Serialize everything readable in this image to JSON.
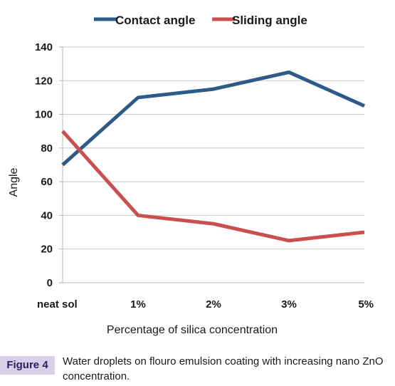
{
  "chart_data": {
    "type": "line",
    "categories": [
      "neat sol",
      "1%",
      "2%",
      "3%",
      "5%"
    ],
    "series": [
      {
        "name": "Contact angle",
        "color": "#2e5a8a",
        "values": [
          70,
          110,
          115,
          125,
          105
        ]
      },
      {
        "name": "Sliding angle",
        "color": "#c9504e",
        "values": [
          90,
          40,
          35,
          25,
          30
        ]
      }
    ],
    "xlabel": "Percentage of silica concentration",
    "ylabel": "Angle",
    "ylim": [
      0,
      140
    ],
    "yticks": [
      "0",
      "20",
      "40",
      "60",
      "80",
      "100",
      "120",
      "140"
    ],
    "grid": "horizontal",
    "legend_position": "top"
  },
  "caption": {
    "label": "Figure 4",
    "text": "Water droplets on flouro emulsion coating with increasing nano ZnO concentration."
  }
}
